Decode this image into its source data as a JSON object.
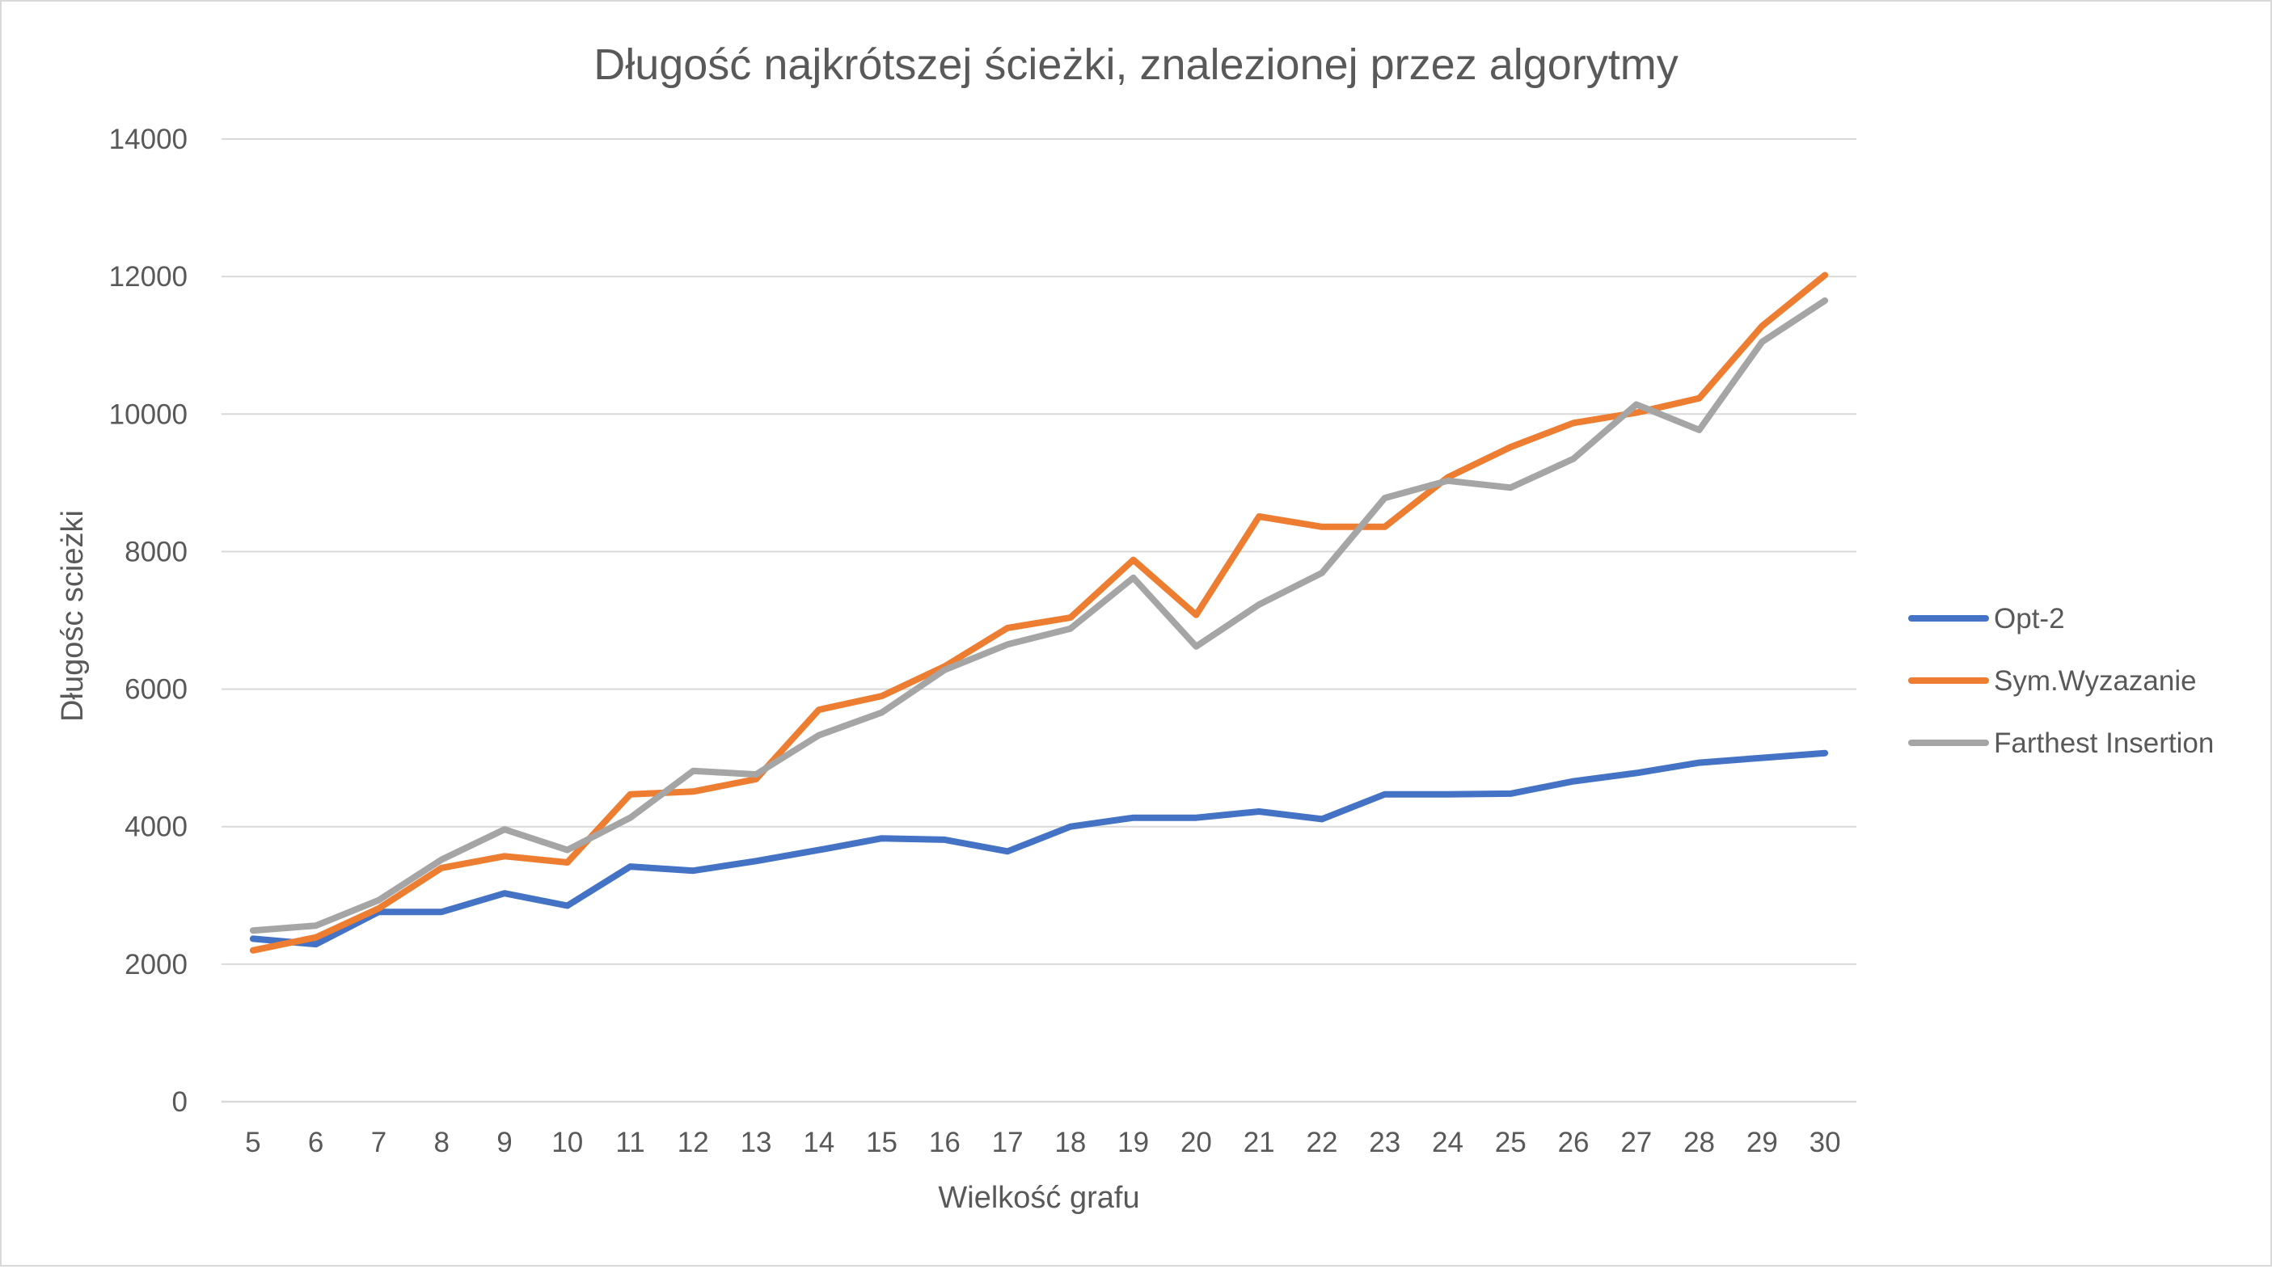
{
  "chart_data": {
    "type": "line",
    "title": "Długość najkrótszej ścieżki, znalezionej przez algorytmy",
    "xlabel": "Wielkość grafu",
    "ylabel": "Długośc scieżki",
    "ylim": [
      0,
      14000
    ],
    "yticks": [
      0,
      2000,
      4000,
      6000,
      8000,
      10000,
      12000,
      14000
    ],
    "grid": true,
    "legend_position": "right",
    "categories": [
      "5",
      "6",
      "7",
      "8",
      "9",
      "10",
      "11",
      "12",
      "13",
      "14",
      "15",
      "16",
      "17",
      "18",
      "19",
      "20",
      "21",
      "22",
      "23",
      "24",
      "25",
      "26",
      "27",
      "28",
      "29",
      "30"
    ],
    "series": [
      {
        "name": "Opt-2",
        "color": "#4472c4",
        "values": [
          2370,
          2290,
          2760,
          2760,
          3030,
          2850,
          3420,
          3360,
          3500,
          3660,
          3830,
          3810,
          3640,
          4000,
          4130,
          4130,
          4220,
          4110,
          4470,
          4470,
          4480,
          4660,
          4780,
          4930,
          5000,
          5070
        ]
      },
      {
        "name": "Sym.Wyzazanie",
        "color": "#ed7d31",
        "values": [
          2200,
          2390,
          2810,
          3400,
          3570,
          3480,
          4470,
          4510,
          4690,
          5700,
          5900,
          6330,
          6890,
          7040,
          7880,
          7080,
          8510,
          8360,
          8360,
          9080,
          9520,
          9870,
          10020,
          10230,
          11280,
          12020
        ]
      },
      {
        "name": "Farthest Insertion",
        "color": "#a5a5a5",
        "values": [
          2490,
          2560,
          2930,
          3520,
          3960,
          3660,
          4130,
          4810,
          4760,
          5330,
          5660,
          6280,
          6650,
          6880,
          7620,
          6620,
          7230,
          7690,
          8780,
          9030,
          8930,
          9350,
          10140,
          9770,
          11050,
          11650
        ]
      }
    ]
  }
}
